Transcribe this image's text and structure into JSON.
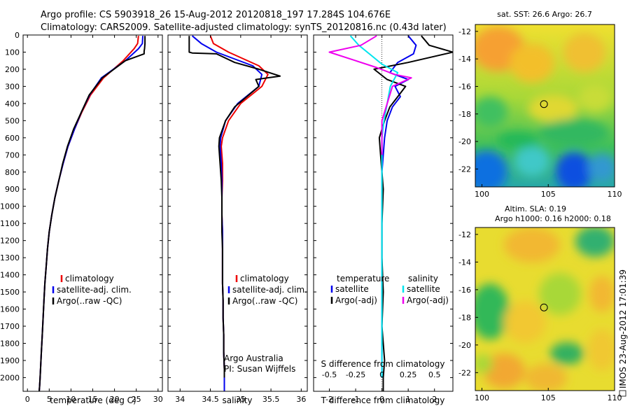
{
  "header": {
    "line1": "Argo profile: CS 5903918_26 15-Aug-2012 20120818_197 17.284S 104.676E",
    "line2": "Climatology: CARS2009. Satellite-adjusted climatology: synTS_20120816.nc (0.43d later)"
  },
  "footer": {
    "stamp": "IMOS 23-Aug-2012 17:01:39"
  },
  "colors": {
    "climatology": "#ee0000",
    "satellite": "#0000ee",
    "argo": "#000000",
    "satellite_salinity": "#00e5ee",
    "argo_salinity": "#ee00ee"
  },
  "chart_data": [
    {
      "type": "line",
      "id": "temperature",
      "xlabel": "temperature (deg C)",
      "ylabel": "",
      "xlim": [
        -1,
        31
      ],
      "ylim": [
        2080,
        0
      ],
      "xticks": [
        0,
        5,
        10,
        15,
        20,
        25,
        30
      ],
      "yticks": [
        0,
        100,
        200,
        300,
        400,
        500,
        600,
        700,
        800,
        900,
        1000,
        1100,
        1200,
        1300,
        1400,
        1500,
        1600,
        1700,
        1800,
        1900,
        2000
      ],
      "legend": {
        "placement": "lower-center",
        "entries": [
          {
            "label": "climatology",
            "color": "#ee0000"
          },
          {
            "label": "satellite-adj. clim.",
            "color": "#0000ee"
          },
          {
            "label": "Argo(..raw -QC)",
            "color": "#000000"
          }
        ]
      },
      "series": [
        {
          "name": "climatology",
          "color": "#ee0000",
          "x": [
            25.5,
            25.3,
            24.5,
            22.0,
            17.5,
            14.5,
            12.5,
            10.8,
            9.3,
            8.2,
            7.2,
            6.3,
            5.6,
            5.0,
            4.6,
            4.3,
            4.0,
            3.8,
            3.6,
            3.4,
            3.2,
            3.0,
            2.9,
            2.8,
            2.7,
            2.7
          ],
          "y": [
            5,
            50,
            80,
            150,
            250,
            350,
            450,
            550,
            650,
            750,
            850,
            950,
            1050,
            1150,
            1250,
            1350,
            1450,
            1550,
            1650,
            1750,
            1850,
            1950,
            2000,
            2050,
            2080,
            2080
          ]
        },
        {
          "name": "satellite-adj. clim.",
          "color": "#0000ee",
          "x": [
            26.5,
            26.4,
            25.5,
            22.5,
            17.0,
            14.3,
            12.4,
            10.8,
            9.3,
            8.2,
            7.2,
            6.3,
            5.6,
            5.0,
            4.6,
            4.3,
            4.0,
            3.8,
            3.6,
            3.4,
            3.2,
            3.0,
            2.9,
            2.8,
            2.7
          ],
          "y": [
            5,
            50,
            80,
            150,
            250,
            350,
            450,
            550,
            650,
            750,
            850,
            950,
            1050,
            1150,
            1250,
            1350,
            1450,
            1550,
            1650,
            1750,
            1850,
            1950,
            2000,
            2050,
            2080
          ]
        },
        {
          "name": "Argo(..raw -QC)",
          "color": "#000000",
          "x": [
            27.0,
            27.0,
            26.9,
            26.8,
            26.8,
            22.5,
            17.2,
            14.2,
            12.4,
            10.6,
            9.2,
            8.1,
            7.2,
            6.3,
            5.6,
            5.0,
            4.6,
            4.3,
            4.0,
            3.8,
            3.6,
            3.4,
            3.2,
            3.0,
            2.9,
            2.8,
            2.7
          ],
          "y": [
            5,
            50,
            80,
            95,
            110,
            150,
            250,
            350,
            450,
            550,
            650,
            750,
            850,
            950,
            1050,
            1150,
            1250,
            1350,
            1450,
            1550,
            1650,
            1750,
            1850,
            1950,
            2000,
            2050,
            2080
          ]
        }
      ]
    },
    {
      "type": "line",
      "id": "salinity",
      "xlabel": "salinity",
      "ylabel": "",
      "xlim": [
        33.8,
        36.1
      ],
      "ylim": [
        2080,
        0
      ],
      "xticks": [
        34,
        34.5,
        35,
        35.5,
        36
      ],
      "yticks": [
        0,
        100,
        200,
        300,
        400,
        500,
        600,
        700,
        800,
        900,
        1000,
        1100,
        1200,
        1300,
        1400,
        1500,
        1600,
        1700,
        1800,
        1900,
        2000
      ],
      "legend": {
        "placement": "lower-center",
        "entries": [
          {
            "label": "climatology",
            "color": "#ee0000"
          },
          {
            "label": "satellite-adj. clim.",
            "color": "#0000ee"
          },
          {
            "label": "Argo(..raw -QC)",
            "color": "#000000"
          }
        ]
      },
      "annotation": [
        "Argo Australia",
        "PI: Susan Wijffels"
      ],
      "series": [
        {
          "name": "climatology",
          "color": "#ee0000",
          "x": [
            34.5,
            34.55,
            34.8,
            35.3,
            35.45,
            35.35,
            35.0,
            34.8,
            34.7,
            34.68,
            34.7,
            34.7,
            34.69,
            34.69,
            34.7,
            34.7,
            34.7,
            34.7,
            34.71,
            34.71,
            34.72,
            34.72,
            34.73,
            34.73,
            34.73,
            34.73
          ],
          "y": [
            5,
            50,
            100,
            180,
            230,
            300,
            400,
            500,
            600,
            650,
            750,
            850,
            950,
            1050,
            1150,
            1250,
            1350,
            1450,
            1550,
            1650,
            1750,
            1850,
            1950,
            2000,
            2050,
            2080
          ]
        },
        {
          "name": "satellite-adj. clim.",
          "color": "#0000ee",
          "x": [
            34.2,
            34.35,
            34.6,
            35.2,
            35.35,
            35.3,
            34.95,
            34.75,
            34.67,
            34.66,
            34.68,
            34.69,
            34.69,
            34.69,
            34.7,
            34.7,
            34.7,
            34.7,
            34.71,
            34.71,
            34.72,
            34.72,
            34.73,
            34.73,
            34.73,
            34.73
          ],
          "y": [
            5,
            50,
            100,
            180,
            230,
            300,
            400,
            500,
            600,
            650,
            750,
            850,
            950,
            1050,
            1150,
            1250,
            1350,
            1450,
            1550,
            1650,
            1750,
            1850,
            1950,
            2000,
            2050,
            2080
          ]
        },
        {
          "name": "Argo(..raw -QC)",
          "color": "#000000",
          "x": [
            34.15,
            34.15,
            34.2,
            34.6,
            34.9,
            35.3,
            35.65,
            35.25,
            35.3,
            35.1,
            34.9,
            34.75,
            34.65,
            34.64,
            34.66,
            34.68,
            34.69,
            34.69,
            34.69,
            34.7,
            34.7,
            34.7,
            34.71,
            34.71,
            34.72,
            34.72,
            34.73,
            34.73
          ],
          "y": [
            5,
            100,
            105,
            110,
            160,
            200,
            240,
            260,
            300,
            360,
            420,
            500,
            600,
            650,
            750,
            850,
            950,
            1050,
            1150,
            1250,
            1350,
            1450,
            1550,
            1650,
            1750,
            1850,
            1950,
            2000
          ]
        }
      ]
    },
    {
      "type": "line",
      "id": "differences",
      "xlabel": "T difference from climatology",
      "x2label": "S difference from climatology",
      "ylabel": "",
      "xlim": [
        -2.6,
        2.7
      ],
      "x2lim": [
        -0.65,
        0.675
      ],
      "ylim": [
        2080,
        0
      ],
      "xticks": [
        -2,
        -1,
        0,
        1,
        2
      ],
      "x2ticks": [
        "-0.5",
        "-0.25",
        "0",
        "0.25",
        "0.5"
      ],
      "yticks": [
        0,
        100,
        200,
        300,
        400,
        500,
        600,
        700,
        800,
        900,
        1000,
        1100,
        1200,
        1300,
        1400,
        1500,
        1600,
        1700,
        1800,
        1900,
        2000
      ],
      "zero_line": true,
      "legend": {
        "placement": "lower-center",
        "temperature_header": "temperature",
        "salinity_header": "salinity",
        "entries": [
          {
            "label": "satellite",
            "color": "#0000ee",
            "group": "temperature"
          },
          {
            "label": "Argo(-adj)",
            "color": "#000000",
            "group": "temperature"
          },
          {
            "label": "satellite",
            "color": "#00e5ee",
            "group": "salinity"
          },
          {
            "label": "Argo(-adj)",
            "color": "#ee00ee",
            "group": "salinity"
          }
        ]
      },
      "series": [
        {
          "name": "temperature satellite",
          "color": "#0000ee",
          "x": [
            1.0,
            1.3,
            1.2,
            0.6,
            0.3,
            1.0,
            0.5,
            0.7,
            0.4,
            0.2,
            0.1,
            0.05,
            0.0,
            0.0,
            0.0,
            0.0,
            0.0,
            0.0,
            0.0,
            0.0
          ],
          "y": [
            5,
            60,
            110,
            160,
            220,
            260,
            300,
            360,
            420,
            500,
            600,
            700,
            800,
            900,
            1100,
            1300,
            1500,
            1700,
            1900,
            2000
          ]
        },
        {
          "name": "temperature Argo(-adj)",
          "color": "#000000",
          "x": [
            1.5,
            1.8,
            2.7,
            1.0,
            -0.3,
            0.2,
            0.9,
            0.6,
            0.3,
            0.1,
            -0.1,
            -0.05,
            0.0,
            0.05,
            0.0,
            0.0,
            0.05,
            0.0,
            0.1,
            0.05,
            0.05
          ],
          "y": [
            5,
            60,
            100,
            160,
            200,
            260,
            300,
            360,
            420,
            500,
            600,
            700,
            800,
            900,
            1100,
            1300,
            1500,
            1700,
            1900,
            2000,
            2080
          ]
        },
        {
          "name": "salinity satellite",
          "color": "#00e5ee",
          "x": [
            -0.3,
            -0.22,
            -0.12,
            0.0,
            0.15,
            0.08,
            0.05,
            0.02,
            0.0,
            0.0,
            0.0,
            0.0,
            0.0,
            0.0,
            0.0,
            0.0
          ],
          "y": [
            5,
            60,
            110,
            170,
            220,
            300,
            400,
            500,
            600,
            700,
            800,
            1000,
            1200,
            1500,
            1800,
            2000
          ]
        },
        {
          "name": "salinity Argo(-adj)",
          "color": "#ee00ee",
          "x": [
            -0.05,
            -0.2,
            -0.5,
            -0.25,
            -0.05,
            0.12,
            0.28,
            0.1,
            0.05,
            0.0,
            0.0,
            0.0
          ],
          "y": [
            5,
            60,
            100,
            150,
            190,
            230,
            250,
            300,
            400,
            500,
            600,
            700
          ]
        }
      ]
    },
    {
      "type": "heatmap",
      "id": "sst_map",
      "title": "sat. SST: 26.6 Argo: 26.7",
      "xlim": [
        99.5,
        110
      ],
      "ylim": [
        -23.3,
        -11.5
      ],
      "xticks": [
        100,
        105,
        110
      ],
      "yticks": [
        -12,
        -14,
        -16,
        -18,
        -20,
        -22
      ],
      "marker": {
        "x": 104.676,
        "y": -17.284
      },
      "colormap": "jet"
    },
    {
      "type": "heatmap",
      "id": "sla_map",
      "title": "Altim. SLA: 0.19",
      "subtitle": "Argo h1000: 0.16 h2000: 0.18",
      "xlim": [
        99.5,
        110
      ],
      "ylim": [
        -23.3,
        -11.5
      ],
      "xticks": [
        100,
        105,
        110
      ],
      "yticks": [
        -12,
        -14,
        -16,
        -18,
        -20,
        -22
      ],
      "marker": {
        "x": 104.676,
        "y": -17.284
      },
      "colormap": "jet"
    }
  ]
}
